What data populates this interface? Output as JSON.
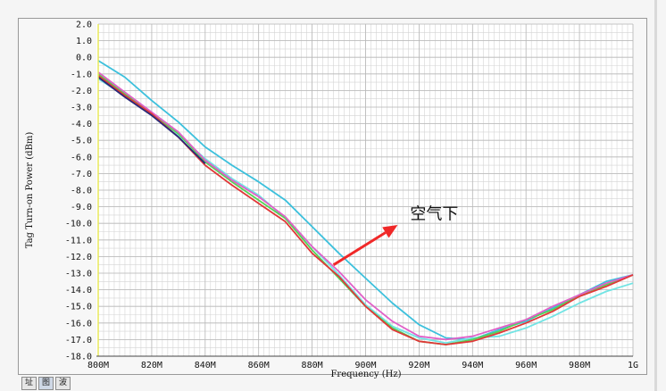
{
  "chart_data": {
    "type": "line",
    "title": "",
    "xlabel": "Frequency (Hz)",
    "ylabel": "Tag Turn-on Power (dBm)",
    "xlim": [
      800,
      1000
    ],
    "ylim": [
      -18,
      2
    ],
    "grid": true,
    "xticks": [
      {
        "v": 800,
        "label": "800M"
      },
      {
        "v": 820,
        "label": "820M"
      },
      {
        "v": 840,
        "label": "840M"
      },
      {
        "v": 860,
        "label": "860M"
      },
      {
        "v": 880,
        "label": "880M"
      },
      {
        "v": 900,
        "label": "900M"
      },
      {
        "v": 920,
        "label": "920M"
      },
      {
        "v": 940,
        "label": "940M"
      },
      {
        "v": 960,
        "label": "960M"
      },
      {
        "v": 980,
        "label": "980M"
      },
      {
        "v": 1000,
        "label": "1G"
      }
    ],
    "yticks": [
      2,
      1,
      0,
      -1,
      -2,
      -3,
      -4,
      -5,
      -6,
      -7,
      -8,
      -9,
      -10,
      -11,
      -12,
      -13,
      -14,
      -15,
      -16,
      -17,
      -18
    ],
    "series": [
      {
        "color": "#3cc0dc",
        "x": [
          800,
          810,
          820,
          830,
          840,
          850,
          860,
          870,
          880,
          890,
          900,
          910,
          920,
          930,
          940,
          950,
          960,
          970,
          980,
          990,
          1000
        ],
        "y": [
          -0.2,
          -1.2,
          -2.6,
          -3.9,
          -5.4,
          -6.5,
          -7.5,
          -8.6,
          -10.2,
          -11.8,
          -13.3,
          -14.8,
          -16.1,
          -16.9,
          -17.0,
          -16.4,
          -15.9,
          -15.1,
          -14.3,
          -13.5,
          -13.1
        ]
      },
      {
        "color": "#72e4e4",
        "x": [
          800,
          810,
          820,
          830,
          840,
          850,
          860,
          870,
          880,
          890,
          900,
          910,
          920,
          930,
          940,
          950,
          960,
          970,
          980,
          990,
          1000
        ],
        "y": [
          -1.3,
          -2.3,
          -3.5,
          -4.7,
          -6.1,
          -7.3,
          -8.3,
          -9.7,
          -11.4,
          -13.1,
          -14.9,
          -16.2,
          -16.9,
          -17.2,
          -16.9,
          -16.8,
          -16.3,
          -15.6,
          -14.8,
          -14.1,
          -13.6
        ]
      },
      {
        "color": "#56d256",
        "x": [
          800,
          810,
          820,
          830,
          840,
          850,
          860,
          870,
          880,
          890,
          900,
          910,
          920,
          930,
          940,
          950,
          960,
          970,
          980,
          990,
          1000
        ],
        "y": [
          -1.0,
          -2.2,
          -3.4,
          -4.6,
          -6.3,
          -7.5,
          -8.6,
          -9.7,
          -11.6,
          -13.3,
          -15.0,
          -16.3,
          -17.1,
          -17.3,
          -17.0,
          -16.5,
          -15.8,
          -15.2,
          -14.3,
          -13.7,
          -13.1
        ]
      },
      {
        "color": "#e060c8",
        "x": [
          800,
          810,
          820,
          830,
          840,
          850,
          860,
          870,
          880,
          890,
          900,
          910,
          920,
          930,
          940,
          950,
          960,
          970,
          980,
          990,
          1000
        ],
        "y": [
          -0.9,
          -2.1,
          -3.3,
          -4.5,
          -6.2,
          -7.4,
          -8.4,
          -9.6,
          -11.4,
          -12.9,
          -14.6,
          -15.9,
          -16.8,
          -17.0,
          -16.8,
          -16.3,
          -15.8,
          -15.0,
          -14.3,
          -13.6,
          -13.1
        ]
      },
      {
        "color": "#e03838",
        "x": [
          800,
          810,
          820,
          830,
          840,
          850,
          860,
          870,
          880,
          890,
          900,
          910,
          920,
          930,
          940,
          950,
          960,
          970,
          980,
          990,
          1000
        ],
        "y": [
          -1.1,
          -2.3,
          -3.4,
          -4.8,
          -6.5,
          -7.7,
          -8.8,
          -9.9,
          -11.8,
          -13.2,
          -15.0,
          -16.4,
          -17.1,
          -17.3,
          -17.1,
          -16.6,
          -16.0,
          -15.3,
          -14.4,
          -13.8,
          -13.1
        ]
      },
      {
        "color": "#2a2a78",
        "x": [
          800,
          810,
          820,
          830,
          840
        ],
        "y": [
          -1.2,
          -2.4,
          -3.5,
          -4.8,
          -6.4
        ]
      }
    ],
    "annotation": {
      "text": "空气下",
      "at": {
        "x": 918,
        "y": -9.8
      },
      "arrow": {
        "from": {
          "x": 888,
          "y": -12.5
        },
        "to": {
          "x": 912,
          "y": -10.1
        }
      },
      "arrow_color": "#f02828"
    }
  },
  "statusbar": {
    "tabs": [
      "址",
      "图",
      "波"
    ]
  }
}
